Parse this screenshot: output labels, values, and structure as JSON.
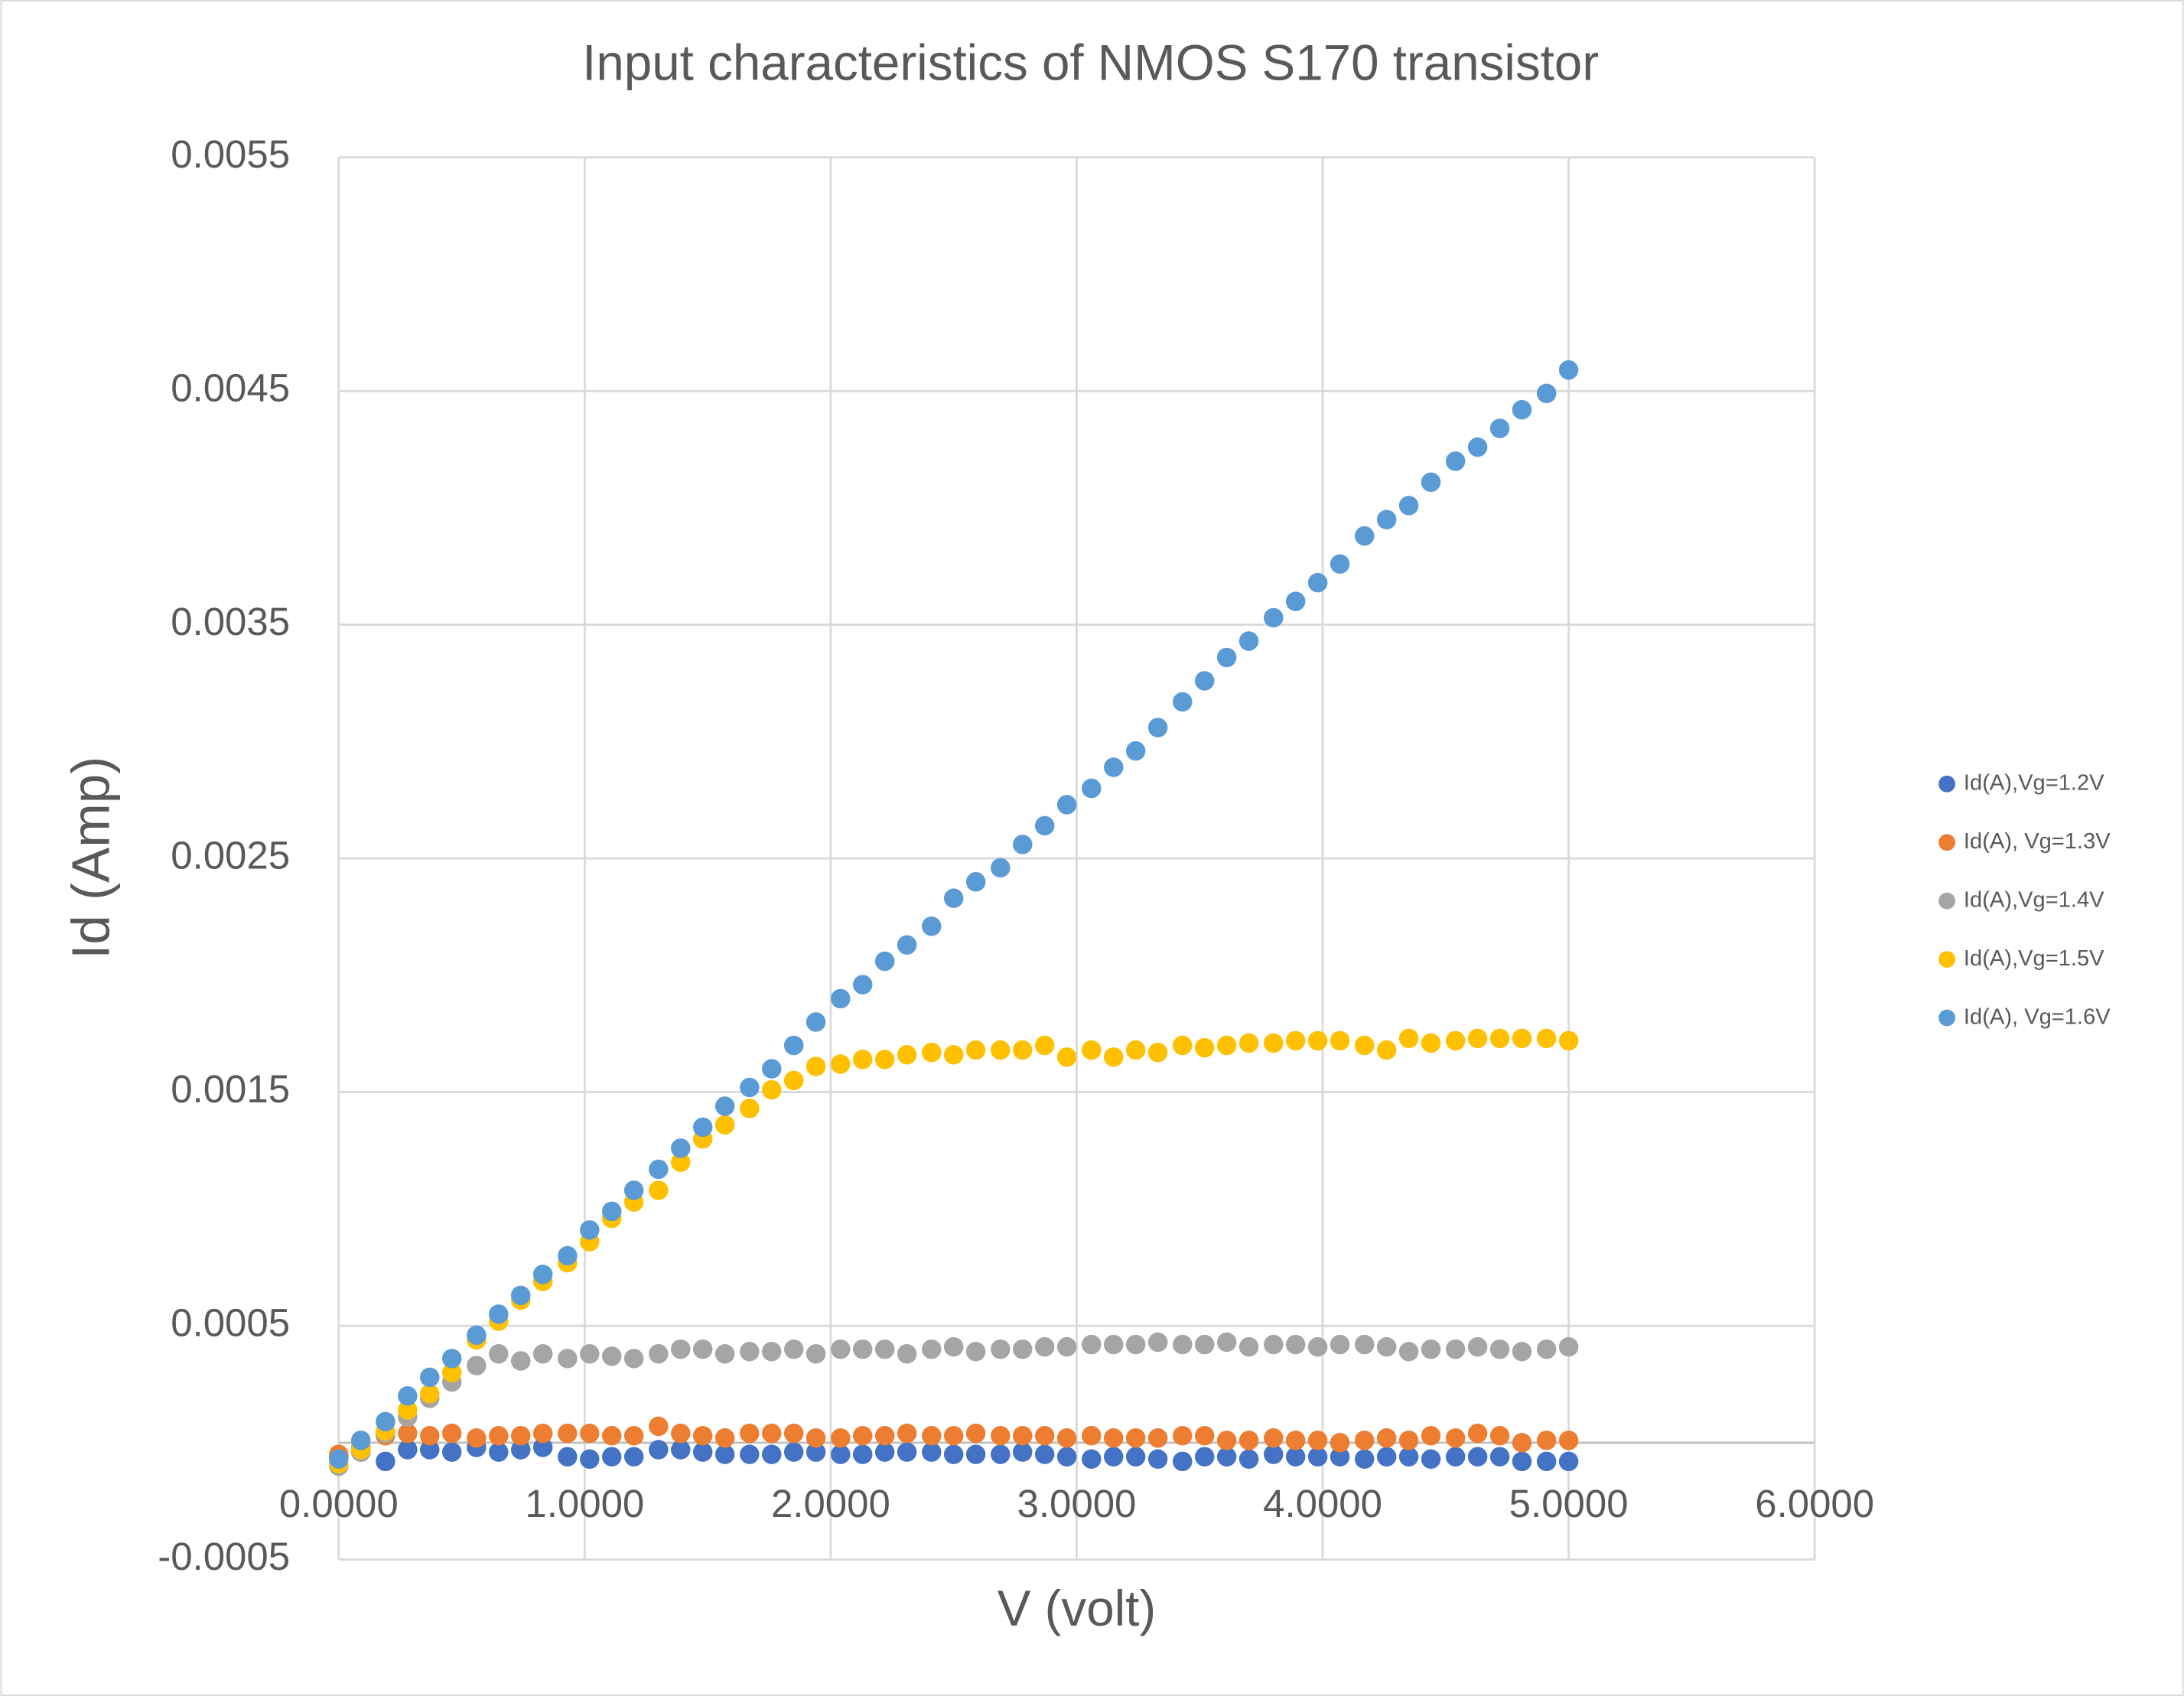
{
  "chart_data": {
    "type": "scatter",
    "title": "Input characteristics of NMOS S170 transistor",
    "x_label": "V (volt)",
    "y_label": "Id (Amp)",
    "x": [
      0,
      0.09,
      0.19,
      0.28,
      0.37,
      0.46,
      0.56,
      0.65,
      0.74,
      0.83,
      0.93,
      1.02,
      1.11,
      1.2,
      1.3,
      1.39,
      1.48,
      1.57,
      1.67,
      1.76,
      1.85,
      1.94,
      2.04,
      2.13,
      2.22,
      2.31,
      2.41,
      2.5,
      2.59,
      2.69,
      2.78,
      2.87,
      2.96,
      3.06,
      3.15,
      3.24,
      3.33,
      3.43,
      3.52,
      3.61,
      3.7,
      3.8,
      3.89,
      3.98,
      4.07,
      4.17,
      4.26,
      4.35,
      4.44,
      4.54,
      4.63,
      4.72,
      4.81,
      4.91,
      5.0
    ],
    "series": [
      {
        "name": "Id(A),Vg=1.2V",
        "color": "#4472c4",
        "values": [
          -6e-05,
          -4e-05,
          -8e-05,
          -3e-05,
          -3e-05,
          -4e-05,
          -2e-05,
          -4e-05,
          -3e-05,
          -2e-05,
          -6e-05,
          -7e-05,
          -6e-05,
          -6e-05,
          -3e-05,
          -3e-05,
          -4e-05,
          -5e-05,
          -5e-05,
          -5e-05,
          -4e-05,
          -4e-05,
          -5e-05,
          -5e-05,
          -4e-05,
          -4e-05,
          -4e-05,
          -5e-05,
          -5e-05,
          -5e-05,
          -4e-05,
          -5e-05,
          -6e-05,
          -7e-05,
          -6e-05,
          -6e-05,
          -7e-05,
          -8e-05,
          -6e-05,
          -6e-05,
          -7e-05,
          -5e-05,
          -6e-05,
          -6e-05,
          -6e-05,
          -7e-05,
          -6e-05,
          -6e-05,
          -7e-05,
          -6e-05,
          -6e-05,
          -6e-05,
          -8e-05,
          -8e-05,
          -8e-05
        ]
      },
      {
        "name": "Id(A), Vg=1.3V",
        "color": "#ed7d31",
        "values": [
          -5e-05,
          -2e-05,
          3e-05,
          4e-05,
          3e-05,
          4e-05,
          2e-05,
          3e-05,
          3e-05,
          4e-05,
          4e-05,
          4e-05,
          3e-05,
          3e-05,
          7e-05,
          4e-05,
          3e-05,
          2e-05,
          4e-05,
          4e-05,
          4e-05,
          2e-05,
          2e-05,
          3e-05,
          3e-05,
          4e-05,
          3e-05,
          3e-05,
          4e-05,
          3e-05,
          3e-05,
          3e-05,
          2e-05,
          3e-05,
          2e-05,
          2e-05,
          2e-05,
          3e-05,
          3e-05,
          1e-05,
          1e-05,
          2e-05,
          1e-05,
          1e-05,
          0,
          1e-05,
          2e-05,
          1e-05,
          3e-05,
          2e-05,
          4e-05,
          3e-05,
          0,
          1e-05,
          1e-05
        ]
      },
      {
        "name": "Id(A),Vg=1.4V",
        "color": "#a5a5a5",
        "values": [
          -0.0001,
          -4e-05,
          4e-05,
          0.00011,
          0.00019,
          0.00026,
          0.00033,
          0.00038,
          0.00035,
          0.00038,
          0.00036,
          0.00038,
          0.00037,
          0.00036,
          0.00038,
          0.0004,
          0.0004,
          0.00038,
          0.00039,
          0.00039,
          0.0004,
          0.00038,
          0.0004,
          0.0004,
          0.0004,
          0.00038,
          0.0004,
          0.00041,
          0.00039,
          0.0004,
          0.0004,
          0.00041,
          0.00041,
          0.00042,
          0.00042,
          0.00042,
          0.00043,
          0.00042,
          0.00042,
          0.00043,
          0.00041,
          0.00042,
          0.00042,
          0.00041,
          0.00042,
          0.00042,
          0.00041,
          0.00039,
          0.0004,
          0.0004,
          0.00041,
          0.0004,
          0.00039,
          0.0004,
          0.00041
        ]
      },
      {
        "name": "Id(A),Vg=1.5V",
        "color": "#ffc000",
        "values": [
          -9e-05,
          -3e-05,
          5e-05,
          0.00014,
          0.00021,
          0.0003,
          0.00044,
          0.00052,
          0.00061,
          0.00069,
          0.00077,
          0.00086,
          0.00096,
          0.00103,
          0.00108,
          0.0012,
          0.0013,
          0.00136,
          0.00143,
          0.00151,
          0.00155,
          0.00161,
          0.00162,
          0.00164,
          0.00164,
          0.00166,
          0.00167,
          0.00166,
          0.00168,
          0.00168,
          0.00168,
          0.0017,
          0.00165,
          0.00168,
          0.00165,
          0.00168,
          0.00167,
          0.0017,
          0.00169,
          0.0017,
          0.00171,
          0.00171,
          0.00172,
          0.00172,
          0.00172,
          0.0017,
          0.00168,
          0.00173,
          0.00171,
          0.00172,
          0.00173,
          0.00173,
          0.00173,
          0.00173,
          0.00172
        ]
      },
      {
        "name": "Id(A), Vg=1.6V",
        "color": "#5b9bd5",
        "values": [
          -7e-05,
          1e-05,
          9e-05,
          0.0002,
          0.00028,
          0.00036,
          0.00046,
          0.00055,
          0.00063,
          0.00072,
          0.0008,
          0.00091,
          0.00099,
          0.00108,
          0.00117,
          0.00126,
          0.00135,
          0.00144,
          0.00152,
          0.0016,
          0.0017,
          0.0018,
          0.0019,
          0.00196,
          0.00206,
          0.00213,
          0.00221,
          0.00233,
          0.0024,
          0.00246,
          0.00256,
          0.00264,
          0.00273,
          0.0028,
          0.00289,
          0.00296,
          0.00306,
          0.00317,
          0.00326,
          0.00336,
          0.00343,
          0.00353,
          0.0036,
          0.00368,
          0.00376,
          0.00388,
          0.00395,
          0.00401,
          0.00411,
          0.0042,
          0.00426,
          0.00434,
          0.00442,
          0.00449,
          0.00459
        ]
      }
    ],
    "xlim": [
      0,
      6
    ],
    "xticks": [
      {
        "value": 0,
        "label": "0.0000"
      },
      {
        "value": 1,
        "label": "1.0000"
      },
      {
        "value": 2,
        "label": "2.0000"
      },
      {
        "value": 3,
        "label": "3.0000"
      },
      {
        "value": 4,
        "label": "4.0000"
      },
      {
        "value": 5,
        "label": "5.0000"
      },
      {
        "value": 6,
        "label": "6.0000"
      }
    ],
    "ylim": [
      -0.0005,
      0.0055
    ],
    "yticks": [
      -0.0005,
      0.0005,
      0.0015,
      0.0025,
      0.0035,
      0.0045,
      0.0055
    ],
    "grid": true,
    "legend": "right"
  }
}
